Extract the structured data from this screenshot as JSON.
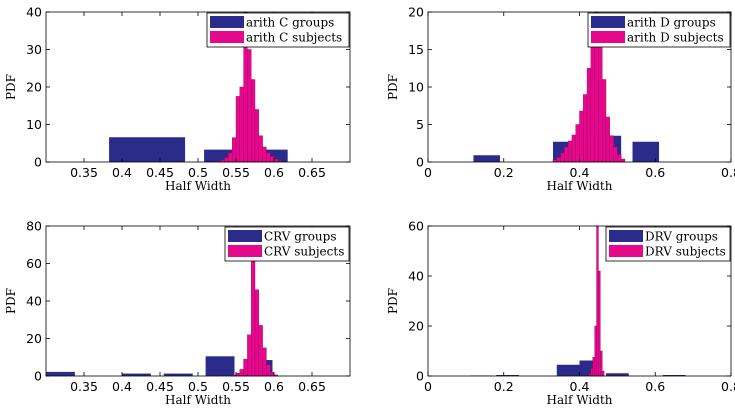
{
  "colors": {
    "groups": "#2b2b8c",
    "subjects": "#e6088a",
    "axis": "#000000"
  },
  "chart_data": [
    {
      "type": "bar",
      "xlabel": "Half Width",
      "ylabel": "PDF",
      "xlim": [
        0.3,
        0.7
      ],
      "ylim": [
        0,
        40
      ],
      "xticks": [
        0.35,
        0.4,
        0.45,
        0.5,
        0.55,
        0.6,
        0.65
      ],
      "xtick_labels": [
        "0.35",
        "0.4",
        "0.45",
        "0.5",
        "0.55",
        "0.6",
        "0.65"
      ],
      "yticks": [
        0,
        10,
        20,
        30,
        40
      ],
      "ytick_labels": [
        "0",
        "10",
        "20",
        "30",
        "40"
      ],
      "legend_position": "top-right",
      "series": [
        {
          "name": "arith C groups",
          "bins": [
            [
              0.383,
              0.483,
              6.6
            ],
            [
              0.508,
              0.618,
              3.3
            ]
          ]
        },
        {
          "name": "arith C subjects",
          "bins": [
            [
              0.525,
              0.53,
              0.2
            ],
            [
              0.53,
              0.535,
              0.5
            ],
            [
              0.535,
              0.54,
              1.2
            ],
            [
              0.54,
              0.545,
              2.5
            ],
            [
              0.545,
              0.55,
              6.5
            ],
            [
              0.55,
              0.555,
              17.5
            ],
            [
              0.555,
              0.56,
              20.0
            ],
            [
              0.56,
              0.565,
              40.0
            ],
            [
              0.565,
              0.57,
              30.0
            ],
            [
              0.57,
              0.575,
              22.0
            ],
            [
              0.575,
              0.58,
              14.0
            ],
            [
              0.58,
              0.585,
              7.0
            ],
            [
              0.585,
              0.59,
              4.0
            ],
            [
              0.59,
              0.595,
              2.5
            ],
            [
              0.595,
              0.6,
              1.5
            ],
            [
              0.6,
              0.605,
              0.8
            ],
            [
              0.605,
              0.61,
              0.3
            ]
          ]
        }
      ]
    },
    {
      "type": "bar",
      "xlabel": "Half Width",
      "ylabel": "PDF",
      "xlim": [
        0,
        0.8
      ],
      "ylim": [
        0,
        20
      ],
      "xticks": [
        0,
        0.2,
        0.4,
        0.6,
        0.8
      ],
      "xtick_labels": [
        "0",
        "0.2",
        "0.4",
        "0.6",
        "0.8"
      ],
      "yticks": [
        0,
        5,
        10,
        15,
        20
      ],
      "ytick_labels": [
        "0",
        "5",
        "10",
        "15",
        "20"
      ],
      "legend_position": "top-right",
      "series": [
        {
          "name": "arith D groups",
          "bins": [
            [
              0.12,
              0.19,
              0.9
            ],
            [
              0.33,
              0.4,
              2.7
            ],
            [
              0.42,
              0.49,
              3.5
            ],
            [
              0.48,
              0.51,
              3.5
            ],
            [
              0.54,
              0.61,
              2.7
            ]
          ]
        },
        {
          "name": "arith D subjects",
          "bins": [
            [
              0.33,
              0.34,
              0.3
            ],
            [
              0.34,
              0.35,
              0.6
            ],
            [
              0.35,
              0.36,
              1.2
            ],
            [
              0.36,
              0.37,
              2.0
            ],
            [
              0.37,
              0.38,
              2.8
            ],
            [
              0.38,
              0.39,
              3.6
            ],
            [
              0.39,
              0.4,
              5.0
            ],
            [
              0.4,
              0.41,
              6.8
            ],
            [
              0.41,
              0.42,
              9.0
            ],
            [
              0.42,
              0.43,
              12.5
            ],
            [
              0.43,
              0.44,
              16.0
            ],
            [
              0.44,
              0.45,
              20.0
            ],
            [
              0.45,
              0.46,
              18.0
            ],
            [
              0.46,
              0.47,
              11.0
            ],
            [
              0.47,
              0.48,
              6.0
            ],
            [
              0.48,
              0.49,
              3.5
            ],
            [
              0.49,
              0.5,
              2.0
            ],
            [
              0.5,
              0.51,
              1.0
            ],
            [
              0.51,
              0.52,
              0.4
            ]
          ]
        }
      ]
    },
    {
      "type": "bar",
      "xlabel": "Half Width",
      "ylabel": "PDF",
      "xlim": [
        0.3,
        0.7
      ],
      "ylim": [
        0,
        80
      ],
      "xticks": [
        0.35,
        0.4,
        0.45,
        0.5,
        0.55,
        0.6,
        0.65
      ],
      "xtick_labels": [
        "0.35",
        "0.4",
        "0.45",
        "0.5",
        "0.55",
        "0.6",
        "0.65"
      ],
      "yticks": [
        0,
        20,
        40,
        60,
        80
      ],
      "ytick_labels": [
        "0",
        "20",
        "40",
        "60",
        "80"
      ],
      "legend_position": "top-right",
      "series": [
        {
          "name": "CRV groups",
          "bins": [
            [
              0.3,
              0.338,
              2.2
            ],
            [
              0.4,
              0.438,
              1.3
            ],
            [
              0.455,
              0.493,
              1.3
            ],
            [
              0.51,
              0.548,
              10.5
            ],
            [
              0.56,
              0.598,
              8.5
            ]
          ]
        },
        {
          "name": "CRV subjects",
          "bins": [
            [
              0.545,
              0.55,
              0.5
            ],
            [
              0.55,
              0.555,
              1.5
            ],
            [
              0.555,
              0.56,
              3.5
            ],
            [
              0.56,
              0.565,
              9.0
            ],
            [
              0.565,
              0.57,
              22.0
            ],
            [
              0.57,
              0.575,
              62.0
            ],
            [
              0.575,
              0.58,
              46.0
            ],
            [
              0.58,
              0.585,
              27.0
            ],
            [
              0.585,
              0.59,
              15.0
            ],
            [
              0.59,
              0.595,
              6.0
            ],
            [
              0.595,
              0.6,
              2.0
            ],
            [
              0.6,
              0.605,
              0.6
            ]
          ]
        }
      ]
    },
    {
      "type": "bar",
      "xlabel": "Half Width",
      "ylabel": "PDF",
      "xlim": [
        0,
        0.8
      ],
      "ylim": [
        0,
        60
      ],
      "xticks": [
        0,
        0.2,
        0.4,
        0.6,
        0.8
      ],
      "xtick_labels": [
        "0",
        "0.2",
        "0.4",
        "0.6",
        "0.8"
      ],
      "yticks": [
        0,
        20,
        40,
        60
      ],
      "ytick_labels": [
        "0",
        "20",
        "40",
        "60"
      ],
      "legend_position": "top-right",
      "series": [
        {
          "name": "DRV groups",
          "bins": [
            [
              0.11,
              0.17,
              0.2
            ],
            [
              0.18,
              0.24,
              0.4
            ],
            [
              0.34,
              0.4,
              4.5
            ],
            [
              0.4,
              0.46,
              6.2
            ],
            [
              0.47,
              0.53,
              1.1
            ],
            [
              0.62,
              0.68,
              0.4
            ]
          ]
        },
        {
          "name": "DRV subjects",
          "bins": [
            [
              0.425,
              0.43,
              0.8
            ],
            [
              0.43,
              0.435,
              3.0
            ],
            [
              0.435,
              0.44,
              7.5
            ],
            [
              0.44,
              0.445,
              20.0
            ],
            [
              0.445,
              0.45,
              60.0
            ],
            [
              0.45,
              0.455,
              42.0
            ],
            [
              0.455,
              0.46,
              10.0
            ],
            [
              0.46,
              0.465,
              2.0
            ]
          ]
        }
      ]
    }
  ]
}
